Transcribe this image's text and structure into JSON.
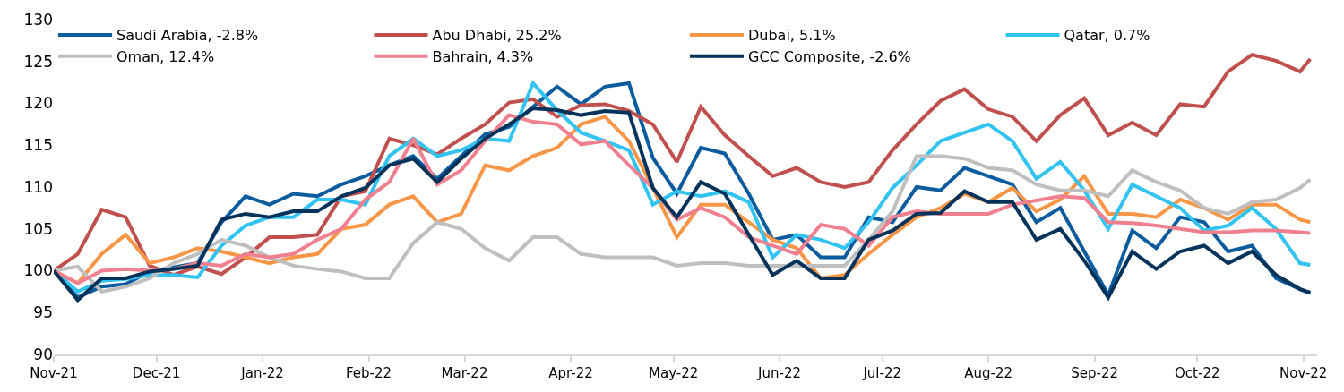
{
  "chart_data": {
    "type": "line",
    "x": [
      "2021-11-01",
      "2021-11-08",
      "2021-11-15",
      "2021-11-22",
      "2021-11-29",
      "2021-12-06",
      "2021-12-13",
      "2021-12-20",
      "2021-12-27",
      "2022-01-03",
      "2022-01-10",
      "2022-01-17",
      "2022-01-24",
      "2022-01-31",
      "2022-02-07",
      "2022-02-14",
      "2022-02-21",
      "2022-02-28",
      "2022-03-07",
      "2022-03-14",
      "2022-03-21",
      "2022-03-28",
      "2022-04-04",
      "2022-04-11",
      "2022-04-18",
      "2022-04-25",
      "2022-05-02",
      "2022-05-09",
      "2022-05-16",
      "2022-05-23",
      "2022-05-30",
      "2022-06-06",
      "2022-06-13",
      "2022-06-20",
      "2022-06-27",
      "2022-07-04",
      "2022-07-11",
      "2022-07-18",
      "2022-07-25",
      "2022-08-01",
      "2022-08-08",
      "2022-08-15",
      "2022-08-22",
      "2022-08-29",
      "2022-09-05",
      "2022-09-12",
      "2022-09-19",
      "2022-09-26",
      "2022-10-03",
      "2022-10-10",
      "2022-10-17",
      "2022-10-24",
      "2022-10-31",
      "2022-11-03"
    ],
    "series": [
      {
        "name": "Saudi Arabia, -2.8%",
        "color": "#0b5c9e",
        "values": [
          100,
          96.8,
          98.1,
          98.4,
          99.9,
          100.4,
          100.9,
          105.8,
          108.9,
          107.9,
          109.2,
          108.9,
          110.3,
          111.3,
          112.6,
          113.7,
          111,
          113.7,
          116.3,
          117.2,
          119.6,
          122,
          119.9,
          122,
          122.4,
          113.5,
          109.2,
          114.7,
          114,
          109.2,
          103.7,
          104.3,
          101.6,
          101.6,
          106.4,
          105.8,
          110,
          109.6,
          112.3,
          111.3,
          110.3,
          105.8,
          107.5,
          102.3,
          97.1,
          104.8,
          102.7,
          106.4,
          105.8,
          102.3,
          103,
          99.1,
          97.8,
          97.3
        ]
      },
      {
        "name": "Abu Dhabi, 25.2%",
        "color": "#c0504d",
        "values": [
          100,
          102,
          107.3,
          106.4,
          100.6,
          99.5,
          100.5,
          99.6,
          101.6,
          104,
          104,
          104.3,
          108.9,
          109.5,
          115.8,
          115,
          113.9,
          115.8,
          117.5,
          120.1,
          120.5,
          118.4,
          119.8,
          119.9,
          119.1,
          117.5,
          113,
          119.6,
          116.2,
          113.7,
          111.3,
          112.3,
          110.6,
          110,
          110.6,
          114.4,
          117.5,
          120.3,
          121.7,
          119.3,
          118.4,
          115.5,
          118.6,
          120.6,
          116.2,
          117.7,
          116.2,
          119.9,
          119.6,
          123.8,
          125.8,
          125.1,
          123.8,
          125.3
        ]
      },
      {
        "name": "Dubai, 5.1%",
        "color": "#f79646",
        "values": [
          100,
          98.5,
          102,
          104.3,
          100.9,
          101.6,
          102.7,
          102.3,
          101.6,
          100.9,
          101.6,
          102,
          105,
          105.5,
          107.9,
          108.9,
          105.8,
          106.8,
          112.6,
          112,
          113.7,
          114.7,
          117.5,
          118.4,
          115.5,
          109.9,
          104,
          107.9,
          107.9,
          105.8,
          103.7,
          102.7,
          99.1,
          99.5,
          102,
          104.3,
          106.4,
          107.5,
          109.2,
          108.2,
          109.9,
          107.1,
          108.5,
          111.3,
          106.8,
          106.8,
          106.4,
          108.5,
          107.5,
          106.1,
          107.9,
          107.9,
          106.1,
          105.8
        ]
      },
      {
        "name": "Qatar, 0.7%",
        "color": "#33c3f0",
        "values": [
          100,
          97.5,
          98.8,
          99,
          99.5,
          99.5,
          99.2,
          103,
          105.4,
          106.4,
          106.4,
          108.5,
          108.5,
          107.9,
          113.7,
          115.8,
          113.7,
          114.4,
          115.8,
          115.5,
          122.4,
          119.2,
          116.5,
          115.5,
          114.4,
          107.9,
          109.5,
          108.9,
          109.5,
          108.2,
          101.6,
          104.3,
          103.7,
          102.7,
          105.8,
          109.9,
          112.6,
          115.5,
          116.5,
          117.5,
          115.5,
          111,
          113,
          109.6,
          105,
          110.3,
          108.9,
          107.5,
          104.8,
          105.4,
          107.5,
          105,
          100.9,
          100.7
        ]
      },
      {
        "name": "Oman, 12.4%",
        "color": "#bfbfbf",
        "values": [
          100,
          100.5,
          97.5,
          98.1,
          99.1,
          100.9,
          102,
          103.7,
          103,
          101.6,
          100.6,
          100.2,
          99.9,
          99.1,
          99.1,
          103.3,
          105.8,
          105,
          102.7,
          101.2,
          104,
          104,
          102,
          101.6,
          101.6,
          101.6,
          100.6,
          100.9,
          100.9,
          100.6,
          100.6,
          100.6,
          100.6,
          100.6,
          103.7,
          107.1,
          113.7,
          113.7,
          113.4,
          112.3,
          112,
          110.3,
          109.6,
          109.6,
          108.9,
          112,
          110.6,
          109.6,
          107.5,
          106.8,
          108.2,
          108.5,
          109.9,
          110.9
        ]
      },
      {
        "name": "Bahrain, 4.3%",
        "color": "#f08090",
        "values": [
          100,
          98.5,
          100,
          100.2,
          100,
          100.2,
          100.9,
          100.6,
          102,
          101.6,
          102,
          103.7,
          105,
          108.5,
          110.6,
          115.8,
          110.3,
          112,
          115.5,
          118.6,
          117.8,
          117.5,
          115.1,
          115.5,
          112.6,
          109.9,
          106.1,
          107.5,
          106.4,
          104,
          103,
          102,
          105.5,
          105,
          103,
          106.4,
          107.1,
          106.8,
          106.8,
          106.8,
          107.9,
          108.4,
          108.9,
          108.7,
          105.8,
          105.7,
          105.4,
          105,
          104.6,
          104.6,
          104.8,
          104.8,
          104.6,
          104.5
        ]
      },
      {
        "name": "GCC Composite, -2.6%",
        "color": "#03325a",
        "values": [
          100,
          96.5,
          99.1,
          99.1,
          99.9,
          100.2,
          100.6,
          106.1,
          106.8,
          106.4,
          107.1,
          107.1,
          108.9,
          109.9,
          112.6,
          113.4,
          110.6,
          113.4,
          115.8,
          117.5,
          119.4,
          119.2,
          118.6,
          119.1,
          118.9,
          109.9,
          106.4,
          110.6,
          109.2,
          104.3,
          99.5,
          101.2,
          99.1,
          99.1,
          103.7,
          104.8,
          106.8,
          106.9,
          109.5,
          108.2,
          108.2,
          103.7,
          105,
          101.2,
          96.8,
          102.3,
          100.2,
          102.3,
          103,
          100.9,
          102.3,
          99.5,
          97.8,
          97.4
        ]
      }
    ],
    "xlim": [
      "2021-11-01",
      "2022-11-05"
    ],
    "xticks": [
      {
        "value": "2021-11-01",
        "label": "Nov-21"
      },
      {
        "value": "2021-12-01",
        "label": "Dec-21"
      },
      {
        "value": "2022-01-01",
        "label": "Jan-22"
      },
      {
        "value": "2022-02-01",
        "label": "Feb-22"
      },
      {
        "value": "2022-03-01",
        "label": "Mar-22"
      },
      {
        "value": "2022-04-01",
        "label": "Apr-22"
      },
      {
        "value": "2022-05-01",
        "label": "May-22"
      },
      {
        "value": "2022-06-01",
        "label": "Jun-22"
      },
      {
        "value": "2022-07-01",
        "label": "Jul-22"
      },
      {
        "value": "2022-08-01",
        "label": "Aug-22"
      },
      {
        "value": "2022-09-01",
        "label": "Sep-22"
      },
      {
        "value": "2022-10-01",
        "label": "Oct-22"
      },
      {
        "value": "2022-11-01",
        "label": "Nov-22"
      }
    ],
    "ylim": [
      90,
      130
    ],
    "yticks": [
      90,
      95,
      100,
      105,
      110,
      115,
      120,
      125,
      130
    ],
    "grid": false,
    "legend": "top",
    "marker": "none",
    "line_style": "solid"
  }
}
